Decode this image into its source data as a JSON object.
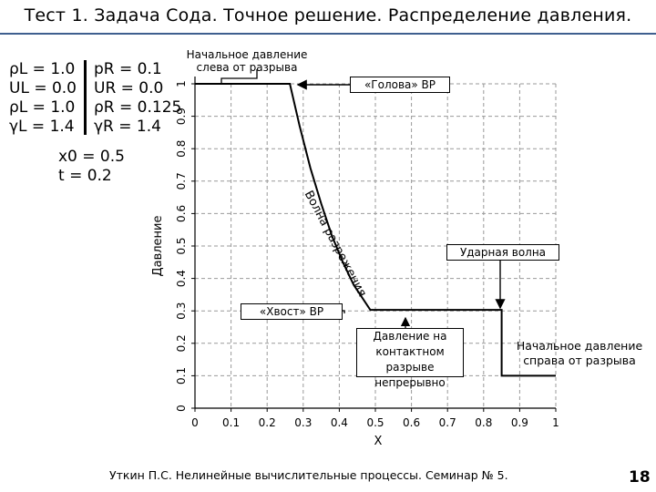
{
  "header": {
    "title": "Тест 1. Задача Сода. Точное решение. Распределение давления."
  },
  "params": {
    "left": [
      "ρL = 1.0",
      "UL = 0.0",
      "ρL = 1.0",
      "γL = 1.4"
    ],
    "right": [
      "pR = 0.1",
      "UR = 0.0",
      "ρR = 0.125",
      "γR = 1.4"
    ],
    "x0": "x0 = 0.5",
    "t": "t = 0.2"
  },
  "annotations": {
    "initial_left": "Начальное давление слева от разрыва",
    "head": "«Голова» ВР",
    "rarefaction": "Волна разрежения",
    "shock": "Ударная волна",
    "tail": "«Хвост» ВР",
    "contact": "Давление на контактном разрыве непрерывно",
    "initial_right": "Начальное давление справа от разрыва"
  },
  "chart_data": {
    "type": "line",
    "xlabel": "X",
    "ylabel": "Давление",
    "xlim": [
      0,
      1
    ],
    "ylim": [
      0,
      1
    ],
    "xticks": [
      "0",
      "0.1",
      "0.2",
      "0.3",
      "0.4",
      "0.5",
      "0.6",
      "0.7",
      "0.8",
      "0.9",
      "1"
    ],
    "yticks": [
      "0",
      "0.1",
      "0.2",
      "0.3",
      "0.4",
      "0.5",
      "0.6",
      "0.7",
      "0.8",
      "0.9",
      "1"
    ],
    "grid": true,
    "series": [
      {
        "x": [
          0,
          0.263,
          0.29,
          0.32,
          0.35,
          0.38,
          0.41,
          0.44,
          0.486,
          0.85,
          0.85,
          1.0
        ],
        "y": [
          1.0,
          1.0,
          0.87,
          0.74,
          0.63,
          0.53,
          0.45,
          0.38,
          0.303,
          0.303,
          0.1,
          0.1
        ]
      }
    ]
  },
  "footer": {
    "text": "Уткин П.С. Нелинейные вычислительные процессы. Семинар № 5.",
    "page": "18"
  }
}
